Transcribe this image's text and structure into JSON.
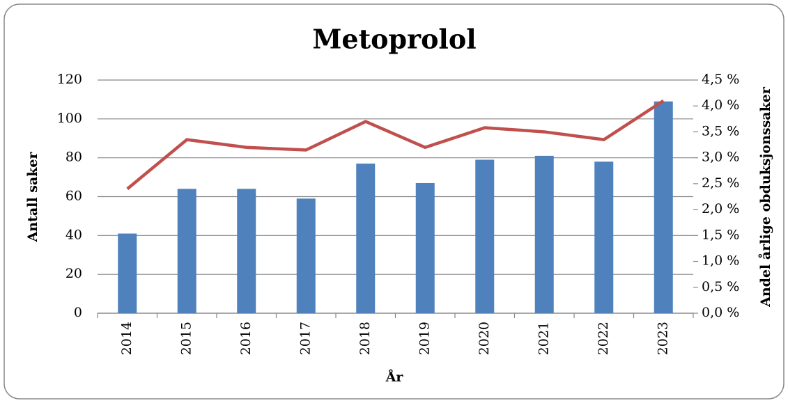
{
  "chart_data": {
    "type": "bar_line",
    "title": "Metoprolol",
    "x_label": "År",
    "y_label": "Antall saker",
    "y2_label": "Andel årlige obduksjonssaker",
    "categories": [
      "2014",
      "2015",
      "2016",
      "2017",
      "2018",
      "2019",
      "2020",
      "2021",
      "2022",
      "2023"
    ],
    "series": [
      {
        "type": "bar",
        "color": "#4f81bd",
        "values": [
          41,
          64,
          64,
          59,
          77,
          67,
          79,
          81,
          78,
          109
        ]
      },
      {
        "type": "line",
        "axis": "y2",
        "color": "#c0504d",
        "values": [
          2.4,
          3.35,
          3.2,
          3.15,
          3.7,
          3.2,
          3.58,
          3.5,
          3.35,
          4.1
        ]
      }
    ],
    "ylim": [
      0,
      120
    ],
    "yticks": [
      0,
      20,
      40,
      60,
      80,
      100,
      120
    ],
    "y2lim": [
      0,
      4.5
    ],
    "y2ticks": [
      {
        "value": 0,
        "label": "0,0 %"
      },
      {
        "value": 0.5,
        "label": "0,5 %"
      },
      {
        "value": 1,
        "label": "1,0 %"
      },
      {
        "value": 1.5,
        "label": "1,5 %"
      },
      {
        "value": 2,
        "label": "2,0 %"
      },
      {
        "value": 2.5,
        "label": "2,5 %"
      },
      {
        "value": 3,
        "label": "3,0 %"
      },
      {
        "value": 3.5,
        "label": "3,5 %"
      },
      {
        "value": 4,
        "label": "4,0 %"
      },
      {
        "value": 4.5,
        "label": "4,5 %"
      }
    ],
    "grid": true
  }
}
